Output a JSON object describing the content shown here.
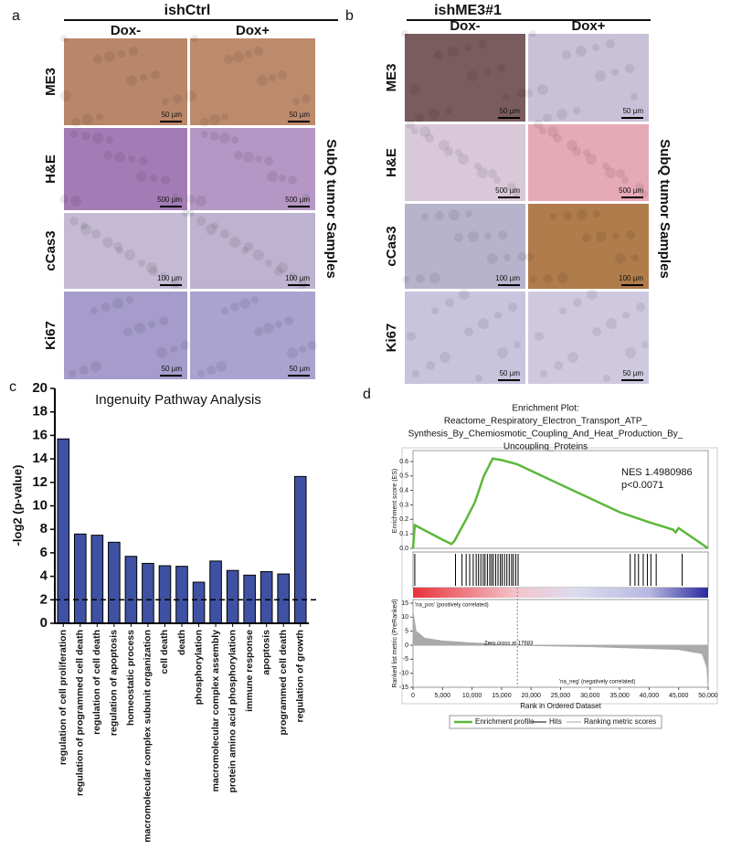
{
  "panels": [
    {
      "letter": "a",
      "title": "ishCtrl",
      "columns": [
        "Dox-",
        "Dox+"
      ],
      "rows": [
        "ME3",
        "H&E",
        "cCas3",
        "Ki67"
      ],
      "scale_bars": [
        "50 µm",
        "500 µm",
        "100 µm",
        "50 µm"
      ],
      "side_label": "SubQ tumor Samples"
    },
    {
      "letter": "b",
      "title": "ishME3#1",
      "columns": [
        "Dox-",
        "Dox+"
      ],
      "rows": [
        "ME3",
        "H&E",
        "cCas3",
        "Ki67"
      ],
      "scale_bars": [
        "50 µm",
        "500 µm",
        "100 µm",
        "50 µm"
      ],
      "side_label": "SubQ tumor Samples"
    }
  ],
  "chart_data": [
    {
      "type": "bar",
      "letter": "c",
      "title": "Ingenuity Pathway Analysis",
      "y_label": "-log2 (p-value)",
      "categories": [
        "regulation of cell proliferation",
        "regulation of programmed cell death",
        "regulation of cell death",
        "regulation of apoptosis",
        "homeostatic process",
        "macromolecular complex subunit organization",
        "cell death",
        "death",
        "phosphorylation",
        "macromolecular complex assembly",
        "protein amino acid phosphorylation",
        "immune response",
        "apoptosis",
        "programmed cell death",
        "regulation of growth"
      ],
      "values": [
        15.7,
        7.6,
        7.5,
        6.9,
        5.7,
        5.1,
        4.9,
        4.85,
        3.5,
        5.3,
        4.5,
        4.1,
        4.4,
        4.2,
        12.5
      ],
      "color": "#3f51a3",
      "threshold": 2,
      "ylim": [
        0,
        20
      ],
      "yticks": [
        0,
        2,
        4,
        6,
        8,
        10,
        12,
        14,
        16,
        18,
        20
      ]
    },
    {
      "type": "line",
      "letter": "d",
      "title": [
        "Enrichment Plot:",
        "Reactome_Respiratory_Electron_Transport_ATP_",
        "Synthesis_By_Chemiosmotic_Coupling_And_Heat_Production_By_",
        "Uncoupling_Proteins"
      ],
      "y_label": "Enrichment score (ES)",
      "x_label": "Rank in Ordered Dataset",
      "annotations": [
        "NES 1.4980986",
        "p<0.0071"
      ],
      "x": [
        0,
        300,
        5000,
        6500,
        7000,
        9000,
        10500,
        12000,
        13500,
        15000,
        17683,
        25000,
        35000,
        40000,
        44000,
        44500,
        45000,
        50000
      ],
      "series": [
        {
          "name": "Enrichment profile",
          "color": "#5cb83a",
          "values": [
            0,
            0.16,
            0.06,
            0.03,
            0.05,
            0.2,
            0.32,
            0.5,
            0.62,
            0.61,
            0.58,
            0.44,
            0.25,
            0.18,
            0.13,
            0.11,
            0.14,
            0
          ]
        }
      ],
      "hits": {
        "name": "Hits",
        "color": "#000000",
        "x": [
          300,
          7200,
          8300,
          9000,
          9600,
          10200,
          10700,
          11100,
          11500,
          11900,
          12200,
          12600,
          13000,
          13300,
          13600,
          14000,
          14400,
          14800,
          15100,
          15500,
          15900,
          16300,
          16700,
          17000,
          17400,
          17800,
          36800,
          37600,
          38200,
          39000,
          39700,
          40300,
          41200,
          45600
        ]
      },
      "ranked": {
        "name": "Ranking metric scores",
        "color": "#aaaaaa",
        "y_label": "Ranked list metric (PreRanked)",
        "x": [
          0,
          500,
          2000,
          5000,
          10000,
          17683,
          30000,
          45000,
          49000,
          49800,
          50000
        ],
        "values": [
          12,
          5,
          2.5,
          1.5,
          0.8,
          0,
          -0.5,
          -1.5,
          -3,
          -8,
          -15
        ],
        "ylim": [
          -15,
          15
        ],
        "yticks": [
          15,
          10,
          5,
          0,
          -5,
          -10,
          -15
        ],
        "annotations": [
          "'na_pos' (positively correlated)",
          "Zero cross at 17683",
          "'na_neg' (negatively correlated)"
        ]
      },
      "xlim": [
        0,
        50000
      ],
      "xticks": [
        0,
        {
          "value": 5000,
          "label": "5,000"
        },
        {
          "value": 10000,
          "label": "10,000"
        },
        {
          "value": 15000,
          "label": "15,000"
        },
        {
          "value": 20000,
          "label": "20,000"
        },
        {
          "value": 25000,
          "label": "25,000"
        },
        {
          "value": 30000,
          "label": "30,000"
        },
        {
          "value": 35000,
          "label": "35,000"
        },
        {
          "value": 40000,
          "label": "40,000"
        },
        {
          "value": 45000,
          "label": "45,000"
        },
        {
          "value": 50000,
          "label": "50,000"
        }
      ],
      "ylim": [
        0,
        0.65
      ],
      "yticks": [
        {
          "value": 0,
          "label": "0.0"
        },
        0.1,
        0.2,
        0.3,
        0.4,
        0.5,
        0.6
      ]
    }
  ]
}
